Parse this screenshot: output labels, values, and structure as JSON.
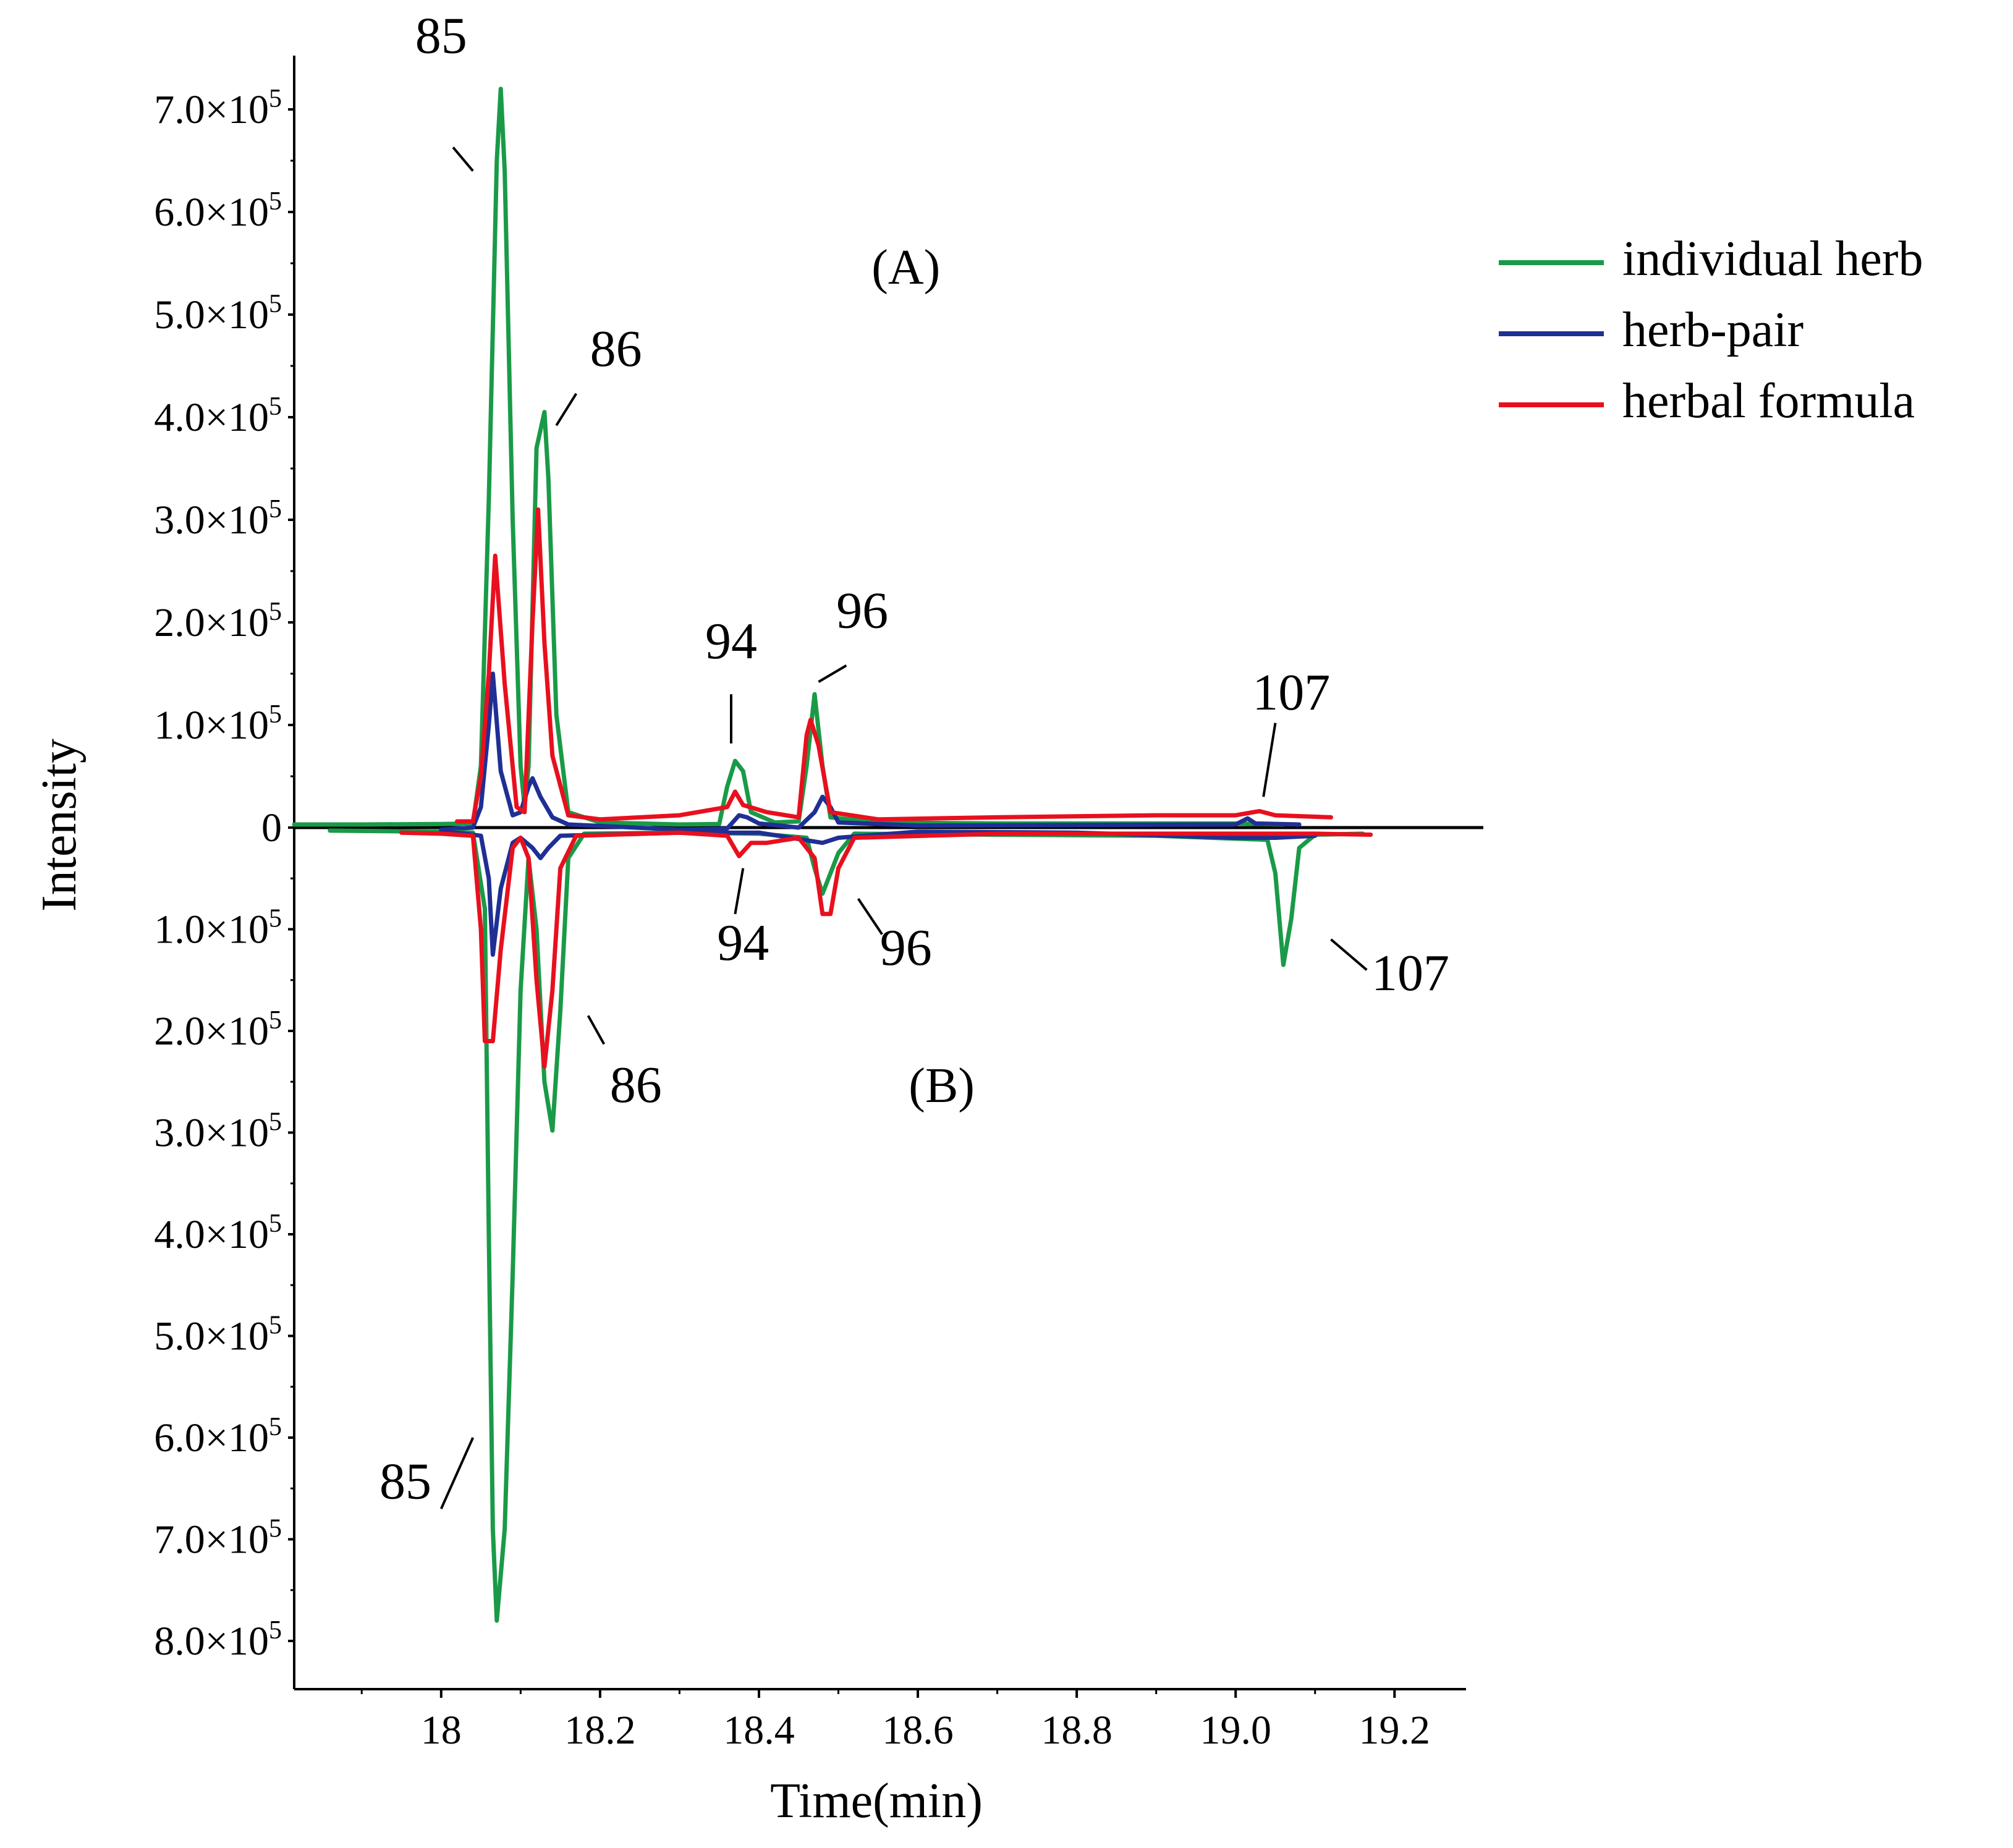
{
  "chart_data": {
    "type": "line",
    "xlabel": "Time(min)",
    "ylabel": "Intensity",
    "xlim": [
      17.815,
      19.29
    ],
    "ylim": [
      -800000,
      720000
    ],
    "x_ticks": [
      {
        "value": 18.0,
        "label": "18"
      },
      {
        "value": 18.2,
        "label": "18.2"
      },
      {
        "value": 18.4,
        "label": "18.4"
      },
      {
        "value": 18.6,
        "label": "18.6"
      },
      {
        "value": 18.8,
        "label": "18.8"
      },
      {
        "value": 19.0,
        "label": "19.0"
      },
      {
        "value": 19.2,
        "label": "19.2"
      }
    ],
    "y_ticks_top": [
      {
        "value": 0,
        "label": "0"
      },
      {
        "value": 100000,
        "label": "1.0×10"
      },
      {
        "value": 200000,
        "label": "2.0×10"
      },
      {
        "value": 300000,
        "label": "3.0×10"
      },
      {
        "value": 400000,
        "label": "4.0×10"
      },
      {
        "value": 500000,
        "label": "5.0×10"
      },
      {
        "value": 600000,
        "label": "6.0×10"
      },
      {
        "value": 700000,
        "label": "7.0×10"
      }
    ],
    "y_ticks_bottom": [
      {
        "value": -100000,
        "label": "1.0×10"
      },
      {
        "value": -200000,
        "label": "2.0×10"
      },
      {
        "value": -300000,
        "label": "3.0×10"
      },
      {
        "value": -400000,
        "label": "4.0×10"
      },
      {
        "value": -500000,
        "label": "5.0×10"
      },
      {
        "value": -600000,
        "label": "6.0×10"
      },
      {
        "value": -700000,
        "label": "7.0×10"
      },
      {
        "value": -800000,
        "label": "8.0×10"
      }
    ],
    "tick_exponent": "5",
    "panels": [
      {
        "label": "(A)",
        "x": 18.585,
        "y": 530000
      },
      {
        "label": "(B)",
        "x": 18.63,
        "y": -270000
      }
    ],
    "legend": {
      "position": "top-right",
      "entries": [
        {
          "name": "individual herb",
          "color": "#1a9a48"
        },
        {
          "name": "herb-pair",
          "color": "#1f2f94"
        },
        {
          "name": "herbal formula",
          "color": "#e8101e"
        }
      ]
    },
    "series": [
      {
        "name": "individual herb",
        "color": "#1a9a48",
        "panel": "A",
        "points": [
          [
            17.815,
            3000
          ],
          [
            17.9,
            3000
          ],
          [
            18.0,
            3500
          ],
          [
            18.04,
            4000
          ],
          [
            18.05,
            60000
          ],
          [
            18.06,
            320000
          ],
          [
            18.07,
            650000
          ],
          [
            18.075,
            720000
          ],
          [
            18.08,
            640000
          ],
          [
            18.09,
            300000
          ],
          [
            18.1,
            60000
          ],
          [
            18.105,
            20000
          ],
          [
            18.11,
            60000
          ],
          [
            18.12,
            370000
          ],
          [
            18.13,
            405000
          ],
          [
            18.135,
            340000
          ],
          [
            18.145,
            110000
          ],
          [
            18.16,
            15000
          ],
          [
            18.2,
            5000
          ],
          [
            18.3,
            3000
          ],
          [
            18.35,
            3500
          ],
          [
            18.36,
            40000
          ],
          [
            18.37,
            65000
          ],
          [
            18.38,
            55000
          ],
          [
            18.39,
            15000
          ],
          [
            18.42,
            5000
          ],
          [
            18.45,
            6000
          ],
          [
            18.46,
            60000
          ],
          [
            18.47,
            130000
          ],
          [
            18.48,
            60000
          ],
          [
            18.49,
            10000
          ],
          [
            18.55,
            5000
          ],
          [
            18.7,
            4000
          ],
          [
            19.0,
            4000
          ],
          [
            19.06,
            3000
          ]
        ]
      },
      {
        "name": "herb-pair",
        "color": "#1f2f94",
        "panel": "A",
        "points": [
          [
            18.0,
            -2000
          ],
          [
            18.04,
            0
          ],
          [
            18.05,
            20000
          ],
          [
            18.06,
            100000
          ],
          [
            18.065,
            150000
          ],
          [
            18.075,
            55000
          ],
          [
            18.09,
            12000
          ],
          [
            18.1,
            15000
          ],
          [
            18.11,
            40000
          ],
          [
            18.115,
            48000
          ],
          [
            18.125,
            30000
          ],
          [
            18.14,
            10000
          ],
          [
            18.16,
            3000
          ],
          [
            18.3,
            -2000
          ],
          [
            18.36,
            -1000
          ],
          [
            18.375,
            12000
          ],
          [
            18.385,
            10000
          ],
          [
            18.4,
            4000
          ],
          [
            18.45,
            0
          ],
          [
            18.47,
            15000
          ],
          [
            18.48,
            30000
          ],
          [
            18.49,
            20000
          ],
          [
            18.5,
            5000
          ],
          [
            18.6,
            2000
          ],
          [
            19.0,
            3000
          ],
          [
            19.015,
            9000
          ],
          [
            19.025,
            4000
          ],
          [
            19.08,
            3000
          ]
        ]
      },
      {
        "name": "herbal formula",
        "color": "#e8101e",
        "panel": "A",
        "points": [
          [
            18.02,
            6000
          ],
          [
            18.04,
            6000
          ],
          [
            18.05,
            50000
          ],
          [
            18.06,
            150000
          ],
          [
            18.068,
            265000
          ],
          [
            18.08,
            140000
          ],
          [
            18.095,
            20000
          ],
          [
            18.105,
            15000
          ],
          [
            18.115,
            200000
          ],
          [
            18.122,
            310000
          ],
          [
            18.13,
            180000
          ],
          [
            18.14,
            70000
          ],
          [
            18.16,
            12000
          ],
          [
            18.2,
            8000
          ],
          [
            18.3,
            12000
          ],
          [
            18.36,
            20000
          ],
          [
            18.37,
            35000
          ],
          [
            18.38,
            22000
          ],
          [
            18.41,
            15000
          ],
          [
            18.45,
            10000
          ],
          [
            18.46,
            90000
          ],
          [
            18.465,
            105000
          ],
          [
            18.475,
            80000
          ],
          [
            18.49,
            15000
          ],
          [
            18.55,
            8000
          ],
          [
            18.7,
            10000
          ],
          [
            18.9,
            12000
          ],
          [
            19.0,
            12000
          ],
          [
            19.03,
            16000
          ],
          [
            19.05,
            12000
          ],
          [
            19.12,
            10000
          ]
        ]
      },
      {
        "name": "individual herb",
        "color": "#1a9a48",
        "panel": "B",
        "points": [
          [
            17.86,
            -3000
          ],
          [
            18.0,
            -4000
          ],
          [
            18.04,
            -5000
          ],
          [
            18.055,
            -80000
          ],
          [
            18.06,
            -400000
          ],
          [
            18.065,
            -690000
          ],
          [
            18.07,
            -780000
          ],
          [
            18.08,
            -690000
          ],
          [
            18.09,
            -440000
          ],
          [
            18.1,
            -160000
          ],
          [
            18.11,
            -30000
          ],
          [
            18.12,
            -100000
          ],
          [
            18.13,
            -250000
          ],
          [
            18.14,
            -298000
          ],
          [
            18.15,
            -180000
          ],
          [
            18.16,
            -30000
          ],
          [
            18.18,
            -6000
          ],
          [
            18.3,
            -5000
          ],
          [
            18.4,
            -6000
          ],
          [
            18.46,
            -10000
          ],
          [
            18.47,
            -40000
          ],
          [
            18.48,
            -65000
          ],
          [
            18.5,
            -25000
          ],
          [
            18.52,
            -6000
          ],
          [
            18.7,
            -7000
          ],
          [
            18.9,
            -8000
          ],
          [
            19.04,
            -12000
          ],
          [
            19.05,
            -45000
          ],
          [
            19.06,
            -135000
          ],
          [
            19.07,
            -90000
          ],
          [
            19.08,
            -20000
          ],
          [
            19.1,
            -7000
          ],
          [
            19.16,
            -6000
          ]
        ]
      },
      {
        "name": "herb-pair",
        "color": "#1f2f94",
        "panel": "B",
        "points": [
          [
            18.0,
            -3000
          ],
          [
            18.05,
            -8000
          ],
          [
            18.06,
            -50000
          ],
          [
            18.065,
            -125000
          ],
          [
            18.075,
            -60000
          ],
          [
            18.09,
            -15000
          ],
          [
            18.1,
            -10000
          ],
          [
            18.115,
            -20000
          ],
          [
            18.125,
            -30000
          ],
          [
            18.135,
            -20000
          ],
          [
            18.15,
            -8000
          ],
          [
            18.3,
            -5000
          ],
          [
            18.4,
            -5000
          ],
          [
            18.48,
            -15000
          ],
          [
            18.5,
            -10000
          ],
          [
            18.6,
            -4000
          ],
          [
            18.8,
            -5000
          ],
          [
            19.0,
            -10000
          ],
          [
            19.05,
            -10000
          ],
          [
            19.1,
            -8000
          ]
        ]
      },
      {
        "name": "herbal formula",
        "color": "#e8101e",
        "panel": "B",
        "points": [
          [
            17.95,
            -5000
          ],
          [
            18.0,
            -6000
          ],
          [
            18.04,
            -8000
          ],
          [
            18.05,
            -100000
          ],
          [
            18.055,
            -210000
          ],
          [
            18.065,
            -210000
          ],
          [
            18.075,
            -120000
          ],
          [
            18.09,
            -20000
          ],
          [
            18.1,
            -10000
          ],
          [
            18.11,
            -30000
          ],
          [
            18.12,
            -150000
          ],
          [
            18.13,
            -235000
          ],
          [
            18.14,
            -160000
          ],
          [
            18.15,
            -40000
          ],
          [
            18.17,
            -8000
          ],
          [
            18.3,
            -5000
          ],
          [
            18.36,
            -8000
          ],
          [
            18.375,
            -28000
          ],
          [
            18.39,
            -15000
          ],
          [
            18.41,
            -15000
          ],
          [
            18.45,
            -10000
          ],
          [
            18.47,
            -30000
          ],
          [
            18.48,
            -85000
          ],
          [
            18.49,
            -85000
          ],
          [
            18.5,
            -40000
          ],
          [
            18.52,
            -10000
          ],
          [
            18.7,
            -6000
          ],
          [
            19.0,
            -6000
          ],
          [
            19.1,
            -6000
          ],
          [
            19.17,
            -7000
          ]
        ]
      }
    ],
    "peak_labels": [
      {
        "text": "85",
        "panel": "A",
        "x": 18.0,
        "y": 755000,
        "line": [
          [
            18.015,
            663000
          ],
          [
            18.04,
            640000
          ]
        ]
      },
      {
        "text": "86",
        "panel": "A",
        "x": 18.22,
        "y": 450000,
        "line": [
          [
            18.17,
            423000
          ],
          [
            18.145,
            392000
          ]
        ]
      },
      {
        "text": "94",
        "panel": "A",
        "x": 18.365,
        "y": 165000,
        "line": [
          [
            18.365,
            130000
          ],
          [
            18.365,
            82000
          ]
        ]
      },
      {
        "text": "96",
        "panel": "A",
        "x": 18.53,
        "y": 195000,
        "line": [
          [
            18.51,
            158000
          ],
          [
            18.475,
            142000
          ]
        ]
      },
      {
        "text": "107",
        "panel": "A",
        "x": 19.07,
        "y": 115000,
        "line": [
          [
            19.05,
            102000
          ],
          [
            19.035,
            30000
          ]
        ]
      },
      {
        "text": "85",
        "panel": "B",
        "x": 17.955,
        "y": -660000,
        "line": [
          [
            18.0,
            -670000
          ],
          [
            18.04,
            -600000
          ]
        ]
      },
      {
        "text": "86",
        "panel": "B",
        "x": 18.245,
        "y": -270000,
        "line": [
          [
            18.205,
            -213000
          ],
          [
            18.185,
            -185000
          ]
        ]
      },
      {
        "text": "94",
        "panel": "B",
        "x": 18.38,
        "y": -130000,
        "line": [
          [
            18.37,
            -85000
          ],
          [
            18.38,
            -40000
          ]
        ]
      },
      {
        "text": "96",
        "panel": "B",
        "x": 18.585,
        "y": -135000,
        "line": [
          [
            18.555,
            -105000
          ],
          [
            18.525,
            -70000
          ]
        ]
      },
      {
        "text": "107",
        "panel": "B",
        "x": 19.22,
        "y": -160000,
        "line": [
          [
            19.165,
            -140000
          ],
          [
            19.12,
            -110000
          ]
        ]
      }
    ]
  }
}
